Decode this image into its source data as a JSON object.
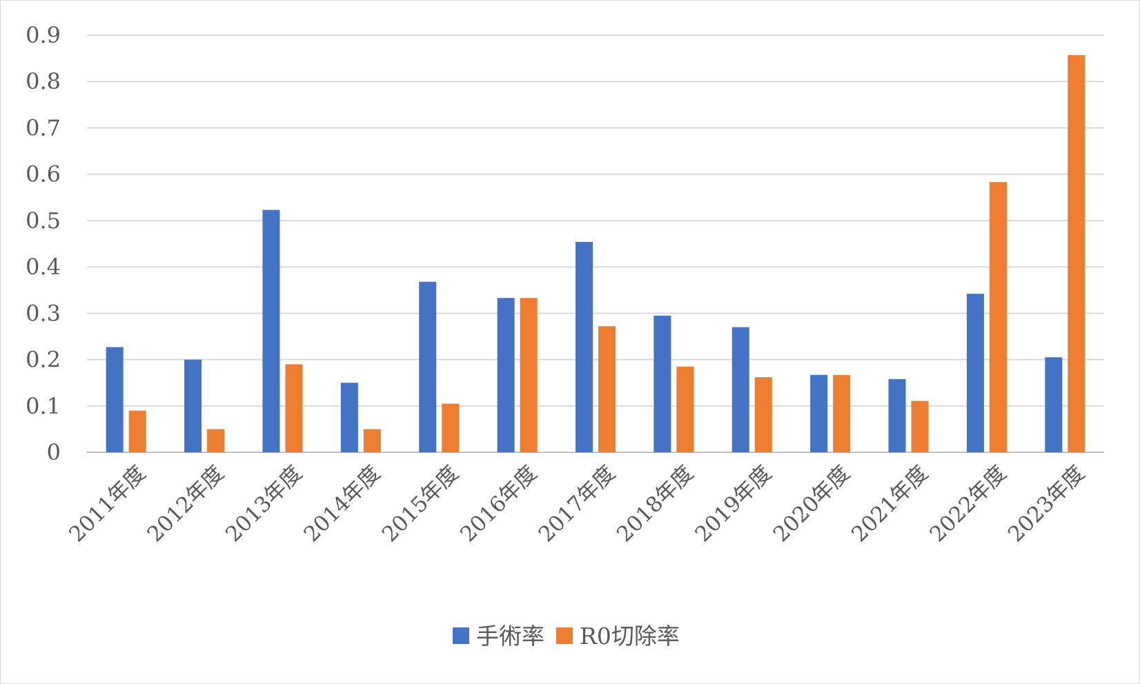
{
  "chart_data": {
    "type": "bar",
    "title": "",
    "xlabel": "",
    "ylabel": "",
    "ylim": [
      0,
      0.9
    ],
    "yticks": [
      "0",
      "0.1",
      "0.2",
      "0.3",
      "0.4",
      "0.5",
      "0.6",
      "0.7",
      "0.8",
      "0.9"
    ],
    "grid": true,
    "legend_position": "bottom",
    "categories": [
      "2011年度",
      "2012年度",
      "2013年度",
      "2014年度",
      "2015年度",
      "2016年度",
      "2017年度",
      "2018年度",
      "2019年度",
      "2020年度",
      "2021年度",
      "2022年度",
      "2023年度"
    ],
    "series": [
      {
        "name": "手術率",
        "color": "#4472C4",
        "values": [
          0.227,
          0.2,
          0.523,
          0.15,
          0.368,
          0.333,
          0.454,
          0.295,
          0.27,
          0.167,
          0.158,
          0.342,
          0.205
        ]
      },
      {
        "name": "R0切除率",
        "color": "#ED7D31",
        "values": [
          0.09,
          0.05,
          0.19,
          0.05,
          0.105,
          0.333,
          0.272,
          0.185,
          0.162,
          0.167,
          0.111,
          0.583,
          0.857
        ]
      }
    ]
  }
}
